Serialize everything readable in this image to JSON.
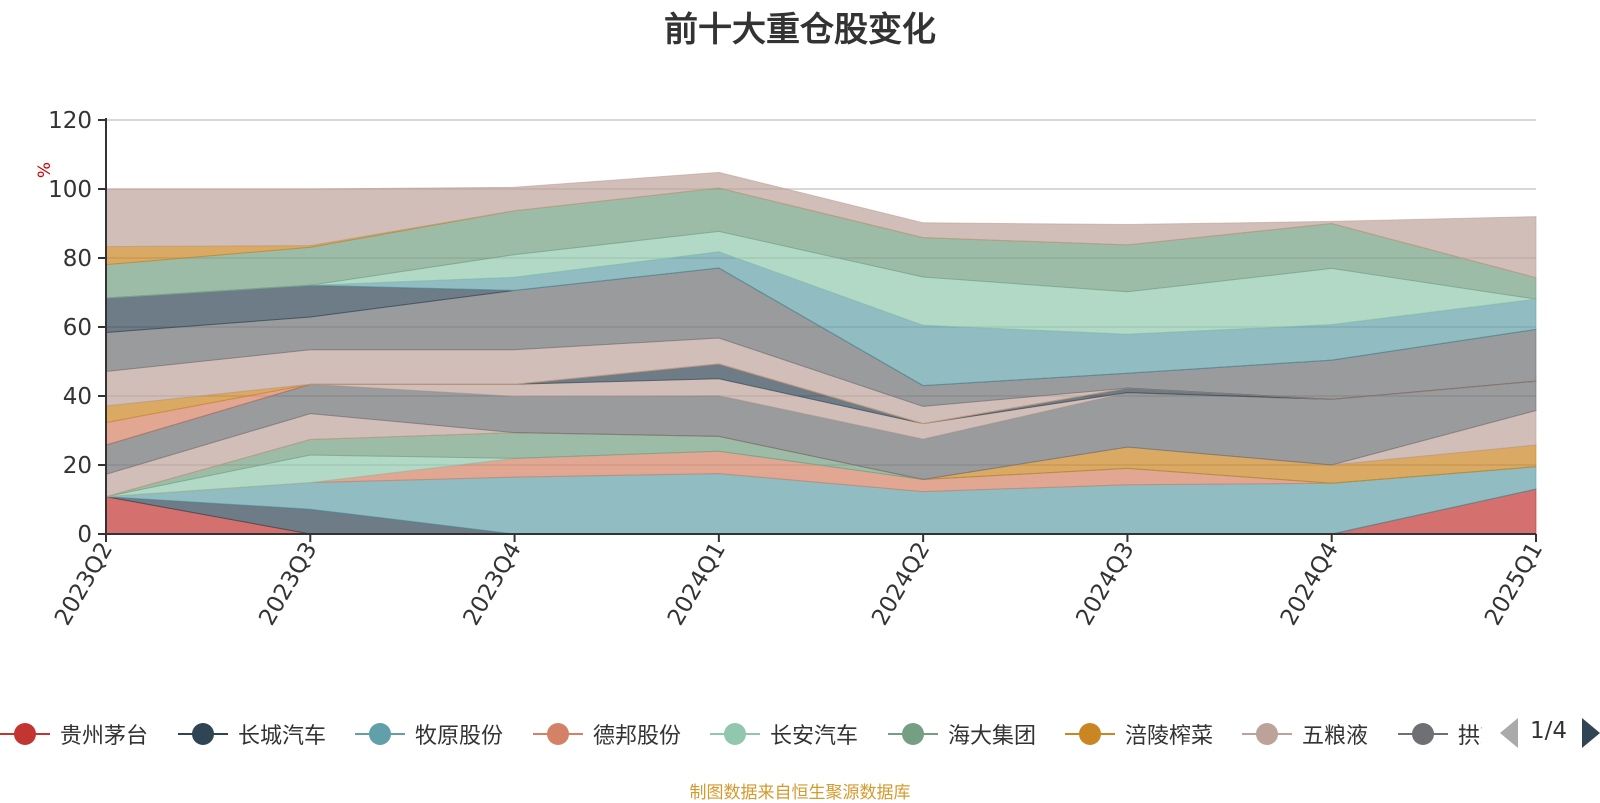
{
  "title": "前十大重仓股变化",
  "source_note": "制图数据来自恒生聚源数据库",
  "pager": {
    "text": "1/4"
  },
  "chart_data": {
    "type": "area",
    "stacked": true,
    "title": "前十大重仓股变化",
    "ylabel": "%",
    "ylim": [
      0,
      120
    ],
    "yticks": [
      0,
      20,
      40,
      60,
      80,
      100,
      120
    ],
    "categories": [
      "2023Q2",
      "2023Q3",
      "2023Q4",
      "2024Q1",
      "2024Q2",
      "2024Q3",
      "2024Q4",
      "2025Q1"
    ],
    "grid": true,
    "legend_position": "bottom",
    "series": [
      {
        "name": "贵州茅台",
        "color": "#c23531",
        "values": [
          10.8,
          0,
          0,
          0,
          0,
          0,
          0,
          13.0
        ]
      },
      {
        "name": "长城汽车",
        "color": "#2f4554",
        "values": [
          0,
          7.2,
          0,
          0,
          0,
          0,
          0,
          0
        ]
      },
      {
        "name": "牧原股份",
        "color": "#61a0a8",
        "values": [
          0,
          7.7,
          16.5,
          17.5,
          12.3,
          14.3,
          14.7,
          6.5
        ]
      },
      {
        "name": "德邦股份",
        "color": "#d48265",
        "values": [
          0,
          0,
          5.4,
          6.5,
          3.5,
          4.7,
          0,
          0
        ]
      },
      {
        "name": "长安汽车",
        "color": "#91c7ae",
        "values": [
          0,
          8.0,
          0,
          0,
          0,
          0,
          0,
          0
        ]
      },
      {
        "name": "海大集团",
        "color": "#749f83",
        "values": [
          0,
          4.5,
          7.5,
          4.3,
          0,
          0,
          0,
          0
        ]
      },
      {
        "name": "涪陵榨菜",
        "color": "#ca8622",
        "values": [
          0,
          0,
          0,
          0,
          0,
          6.2,
          5.3,
          6.3
        ]
      },
      {
        "name": "五粮液",
        "color": "#bda29a",
        "values": [
          6.5,
          7.5,
          0,
          0,
          0,
          0,
          0,
          10.0
        ]
      },
      {
        "name": "拱东医疗",
        "color": "#6e7074",
        "values": [
          8.5,
          8.5,
          10.5,
          11.8,
          11.7,
          15.8,
          19.0,
          8.5
        ]
      },
      {
        "name": "五粮液",
        "color": "#bda29a",
        "values": [
          0,
          0,
          3.5,
          4.9,
          4.5,
          0,
          0,
          0
        ]
      },
      {
        "name": "长城汽车",
        "color": "#2f4554",
        "values": [
          0,
          0,
          0,
          4.3,
          0,
          1.3,
          0,
          0
        ]
      },
      {
        "name": "德邦股份",
        "color": "#d48265",
        "values": [
          6.5,
          0,
          0,
          0,
          0,
          0,
          0,
          0
        ]
      },
      {
        "name": "涪陵榨菜",
        "color": "#ca8622",
        "values": [
          4.8,
          0,
          0,
          0,
          0,
          0,
          0,
          0
        ]
      },
      {
        "name": "五粮液",
        "color": "#bda29a",
        "values": [
          10.0,
          10.0,
          10.0,
          7.5,
          5.0,
          0,
          0,
          0
        ]
      },
      {
        "name": "拱东医疗",
        "color": "#6e7074",
        "values": [
          11.3,
          9.5,
          17.2,
          20.3,
          6.0,
          4.3,
          11.4,
          15.0
        ]
      },
      {
        "name": "长城汽车",
        "color": "#2f4554",
        "values": [
          10.0,
          9.2,
          0,
          0,
          0,
          0,
          0,
          0
        ]
      },
      {
        "name": "牧原股份",
        "color": "#61a0a8",
        "values": [
          0,
          0,
          3.8,
          4.7,
          17.5,
          11.3,
          10.3,
          8.8
        ]
      },
      {
        "name": "长安汽车",
        "color": "#91c7ae",
        "values": [
          0,
          0,
          6.6,
          5.9,
          14.0,
          12.3,
          16.3,
          0
        ]
      },
      {
        "name": "海大集团",
        "color": "#749f83",
        "values": [
          9.7,
          11.0,
          12.7,
          12.6,
          11.4,
          13.6,
          13.0,
          6.2
        ]
      },
      {
        "name": "涪陵榨菜",
        "color": "#ca8622",
        "values": [
          5.2,
          0.5,
          0,
          0,
          0,
          0,
          0,
          0
        ]
      },
      {
        "name": "五粮液",
        "color": "#bda29a",
        "values": [
          16.7,
          16.4,
          6.8,
          4.5,
          4.3,
          5.9,
          0.6,
          17.7
        ]
      }
    ]
  },
  "legend": {
    "items": [
      {
        "label": "贵州茅台",
        "color": "#c23531"
      },
      {
        "label": "长城汽车",
        "color": "#2f4554"
      },
      {
        "label": "牧原股份",
        "color": "#61a0a8"
      },
      {
        "label": "德邦股份",
        "color": "#d48265"
      },
      {
        "label": "长安汽车",
        "color": "#91c7ae"
      },
      {
        "label": "海大集团",
        "color": "#749f83"
      },
      {
        "label": "涪陵榨菜",
        "color": "#ca8622"
      },
      {
        "label": "五粮液",
        "color": "#bda29a"
      },
      {
        "label": "拱东医疗",
        "color": "#6e7074"
      }
    ]
  }
}
